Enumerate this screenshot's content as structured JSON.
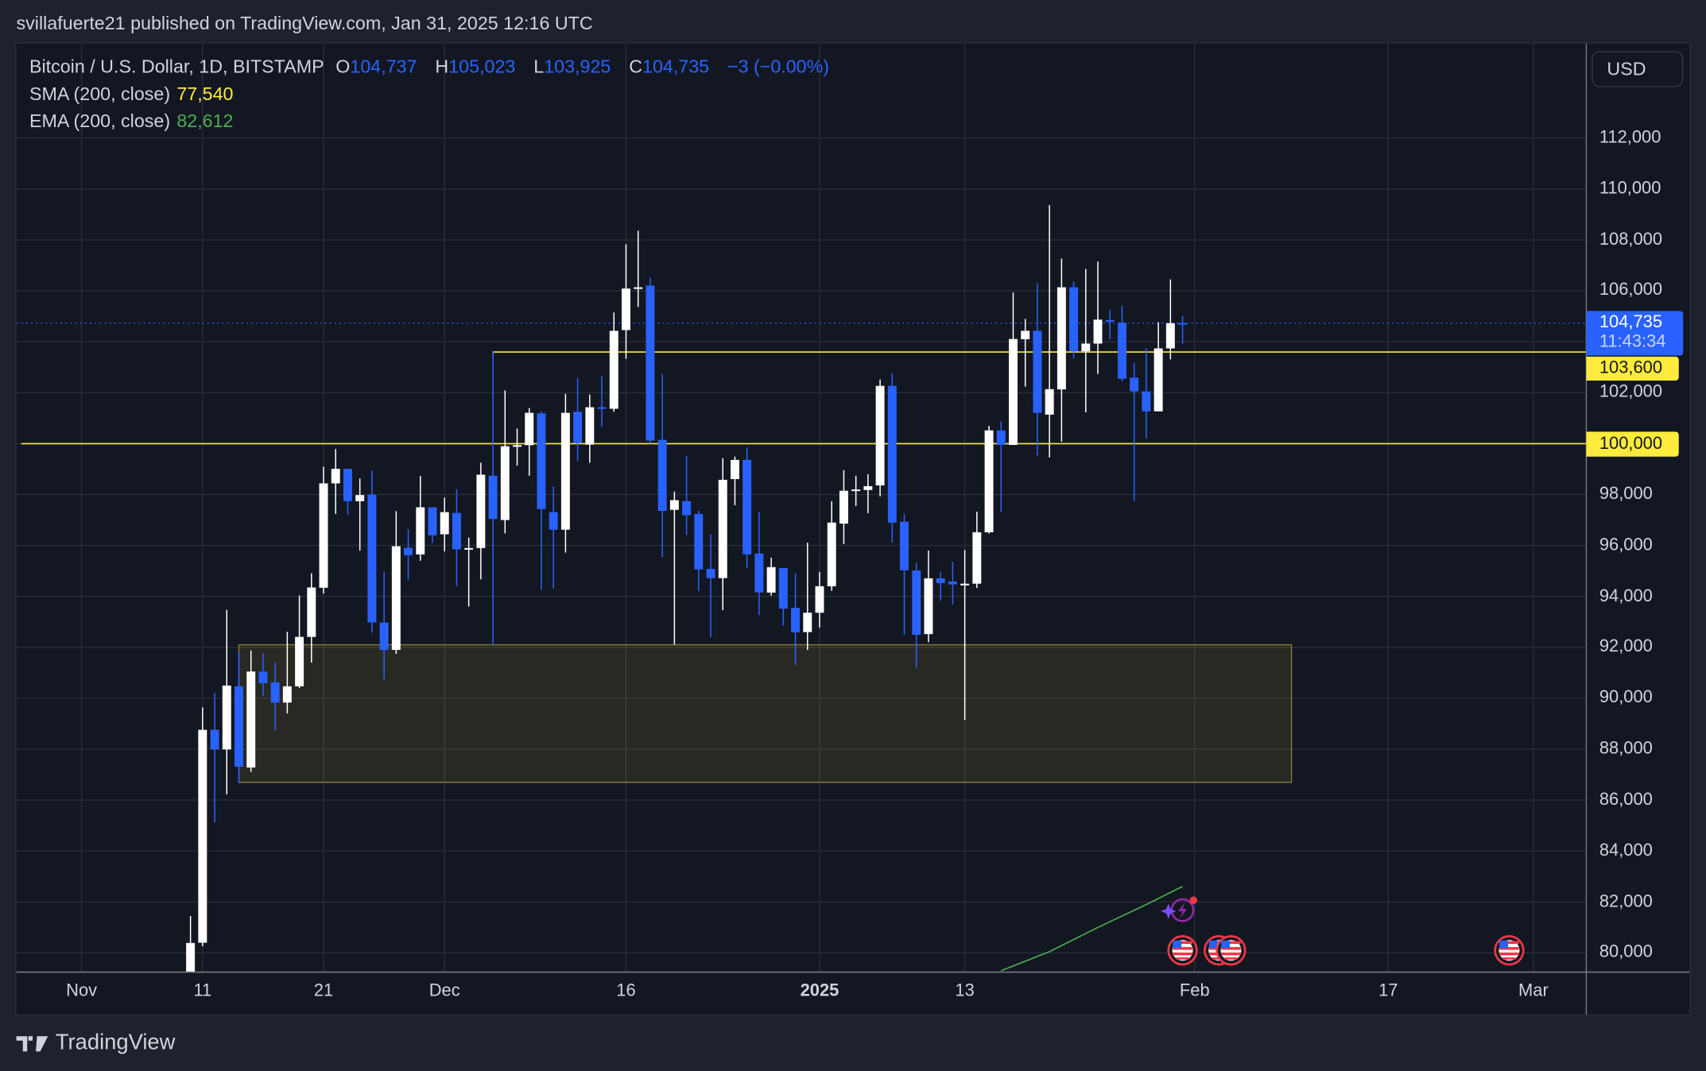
{
  "header": {
    "published": "svillafuerte21 published on TradingView.com, Jan 31, 2025 12:16 UTC"
  },
  "legend": {
    "symbol": "Bitcoin / U.S. Dollar, 1D, BITSTAMP",
    "o_label": "O",
    "o": "104,737",
    "h_label": "H",
    "h": "105,023",
    "l_label": "L",
    "l": "103,925",
    "c_label": "C",
    "c": "104,735",
    "change": "−3 (−0.00%)",
    "sma_label": "SMA (200, close)",
    "sma": "77,540",
    "ema_label": "EMA (200, close)",
    "ema": "82,612"
  },
  "price_axis": {
    "currency": "USD",
    "ticks": [
      "112,000",
      "110,000",
      "108,000",
      "106,000",
      "102,000",
      "98,000",
      "96,000",
      "94,000",
      "92,000",
      "90,000",
      "88,000",
      "86,000",
      "84,000",
      "82,000",
      "80,000"
    ],
    "last_price": "104,735",
    "countdown": "11:43:34",
    "level_high": "103,600",
    "level_low": "100,000"
  },
  "time_axis": {
    "ticks": [
      {
        "label": "Nov",
        "date": "2024-11-01"
      },
      {
        "label": "11",
        "date": "2024-11-11"
      },
      {
        "label": "21",
        "date": "2024-11-21"
      },
      {
        "label": "Dec",
        "date": "2024-12-01"
      },
      {
        "label": "16",
        "date": "2024-12-16"
      },
      {
        "label": "2025",
        "date": "2025-01-01",
        "bold": true
      },
      {
        "label": "13",
        "date": "2025-01-13"
      },
      {
        "label": "Feb",
        "date": "2025-02-01"
      },
      {
        "label": "17",
        "date": "2025-02-17"
      },
      {
        "label": "Mar",
        "date": "2025-03-01"
      }
    ]
  },
  "footer": {
    "brand": "TradingView"
  },
  "colors": {
    "up": "#ffffff",
    "down": "#2962ff",
    "level": "#ffeb3b",
    "ema": "#4caf50",
    "zone_border": "#8a7f33",
    "background": "#131722"
  },
  "chart_data": {
    "type": "candlestick",
    "title": "Bitcoin / U.S. Dollar, 1D, BITSTAMP",
    "ylim": [
      79200,
      113500
    ],
    "xlim": [
      "2024-10-27",
      "2025-03-07"
    ],
    "grid": true,
    "columns": [
      "date",
      "open",
      "high",
      "low",
      "close"
    ],
    "candles": [
      [
        "2024-11-10",
        76600,
        81450,
        76500,
        80390
      ],
      [
        "2024-11-11",
        80400,
        89640,
        80260,
        88760
      ],
      [
        "2024-11-12",
        88760,
        90220,
        85120,
        87990
      ],
      [
        "2024-11-13",
        87990,
        93470,
        86230,
        90500
      ],
      [
        "2024-11-14",
        90470,
        91800,
        86670,
        87310
      ],
      [
        "2024-11-15",
        87280,
        91880,
        87110,
        91050
      ],
      [
        "2024-11-16",
        91050,
        91760,
        90080,
        90590
      ],
      [
        "2024-11-17",
        90630,
        91410,
        88720,
        89830
      ],
      [
        "2024-11-18",
        89830,
        92610,
        89400,
        90470
      ],
      [
        "2024-11-19",
        90470,
        94040,
        90400,
        92410
      ],
      [
        "2024-11-20",
        92410,
        94910,
        91400,
        94350
      ],
      [
        "2024-11-21",
        94340,
        99090,
        94110,
        98440
      ],
      [
        "2024-11-22",
        98440,
        99790,
        97240,
        99010
      ],
      [
        "2024-11-23",
        99010,
        99010,
        97210,
        97740
      ],
      [
        "2024-11-24",
        97740,
        98630,
        95800,
        97980
      ],
      [
        "2024-11-25",
        98000,
        98940,
        92580,
        92980
      ],
      [
        "2024-11-26",
        92970,
        94980,
        90740,
        91900
      ],
      [
        "2024-11-27",
        91900,
        97350,
        91740,
        95970
      ],
      [
        "2024-11-28",
        95910,
        96640,
        94660,
        95620
      ],
      [
        "2024-11-29",
        95650,
        98730,
        95400,
        97500
      ],
      [
        "2024-11-30",
        97500,
        97500,
        96100,
        96400
      ],
      [
        "2024-12-01",
        96440,
        97880,
        95770,
        97310
      ],
      [
        "2024-12-02",
        97280,
        98210,
        94410,
        95850
      ],
      [
        "2024-12-03",
        95850,
        96310,
        93600,
        95900
      ],
      [
        "2024-12-04",
        95900,
        99250,
        94670,
        98780
      ],
      [
        "2024-12-05",
        98740,
        103640,
        92100,
        97040
      ],
      [
        "2024-12-06",
        97000,
        102090,
        96470,
        99900
      ],
      [
        "2024-12-07",
        99900,
        100590,
        99140,
        99940
      ],
      [
        "2024-12-08",
        99940,
        101400,
        98740,
        101210
      ],
      [
        "2024-12-09",
        101190,
        101270,
        94250,
        97430
      ],
      [
        "2024-12-10",
        97310,
        98310,
        94310,
        96620
      ],
      [
        "2024-12-11",
        96620,
        101960,
        95720,
        101210
      ],
      [
        "2024-12-12",
        101250,
        102580,
        99310,
        100020
      ],
      [
        "2024-12-13",
        99960,
        101930,
        99250,
        101430
      ],
      [
        "2024-12-14",
        101430,
        102650,
        100650,
        101400
      ],
      [
        "2024-12-15",
        101370,
        105150,
        101250,
        104430
      ],
      [
        "2024-12-16",
        104460,
        107830,
        103330,
        106090
      ],
      [
        "2024-12-17",
        106090,
        108360,
        105370,
        106140
      ],
      [
        "2024-12-18",
        106210,
        106520,
        100000,
        100120
      ],
      [
        "2024-12-19",
        100150,
        102740,
        95530,
        97360
      ],
      [
        "2024-12-20",
        97400,
        98120,
        92110,
        97780
      ],
      [
        "2024-12-21",
        97740,
        99530,
        96410,
        97190
      ],
      [
        "2024-12-22",
        97240,
        97360,
        94210,
        95060
      ],
      [
        "2024-12-23",
        95080,
        96430,
        92400,
        94720
      ],
      [
        "2024-12-24",
        94720,
        99430,
        93460,
        98580
      ],
      [
        "2024-12-25",
        98610,
        99490,
        97580,
        99360
      ],
      [
        "2024-12-26",
        99360,
        99860,
        95110,
        95650
      ],
      [
        "2024-12-27",
        95680,
        97330,
        93270,
        94160
      ],
      [
        "2024-12-28",
        94150,
        95520,
        94030,
        95150
      ],
      [
        "2024-12-29",
        95110,
        95110,
        92860,
        93520
      ],
      [
        "2024-12-30",
        93550,
        94900,
        91310,
        92590
      ],
      [
        "2024-12-31",
        92600,
        96110,
        91900,
        93360
      ],
      [
        "2025-01-01",
        93360,
        94960,
        92780,
        94400
      ],
      [
        "2025-01-02",
        94400,
        97740,
        94220,
        96900
      ],
      [
        "2025-01-03",
        96860,
        98960,
        96060,
        98150
      ],
      [
        "2025-01-04",
        98150,
        98740,
        97550,
        98200
      ],
      [
        "2025-01-05",
        98180,
        98800,
        97270,
        98330
      ],
      [
        "2025-01-06",
        98360,
        102520,
        97930,
        102270
      ],
      [
        "2025-01-07",
        102270,
        102770,
        96110,
        96900
      ],
      [
        "2025-01-08",
        96930,
        97240,
        92490,
        95030
      ],
      [
        "2025-01-09",
        95020,
        95330,
        91210,
        92490
      ],
      [
        "2025-01-10",
        92520,
        95800,
        92200,
        94710
      ],
      [
        "2025-01-11",
        94710,
        94960,
        93830,
        94520
      ],
      [
        "2025-01-12",
        94580,
        95360,
        93680,
        94470
      ],
      [
        "2025-01-13",
        94470,
        95820,
        89150,
        94500
      ],
      [
        "2025-01-14",
        94500,
        97330,
        94330,
        96520
      ],
      [
        "2025-01-15",
        96520,
        100700,
        96470,
        100520
      ],
      [
        "2025-01-16",
        100520,
        100870,
        97320,
        99950
      ],
      [
        "2025-01-17",
        99950,
        105930,
        99950,
        104110
      ],
      [
        "2025-01-18",
        104100,
        104900,
        102240,
        104430
      ],
      [
        "2025-01-19",
        104430,
        106300,
        99530,
        101210
      ],
      [
        "2025-01-20",
        101140,
        109370,
        99460,
        102140
      ],
      [
        "2025-01-21",
        102130,
        107270,
        100080,
        106140
      ],
      [
        "2025-01-22",
        106140,
        106370,
        103340,
        103630
      ],
      [
        "2025-01-23",
        103630,
        106860,
        101230,
        103930
      ],
      [
        "2025-01-24",
        103930,
        107150,
        102740,
        104870
      ],
      [
        "2025-01-25",
        104850,
        105250,
        104110,
        104800
      ],
      [
        "2025-01-26",
        104750,
        105420,
        102450,
        102550
      ],
      [
        "2025-01-27",
        102590,
        103170,
        97740,
        102050
      ],
      [
        "2025-01-28",
        102050,
        103740,
        100200,
        101270
      ],
      [
        "2025-01-29",
        101270,
        104770,
        101270,
        103740
      ],
      [
        "2025-01-30",
        103740,
        106450,
        103310,
        104730
      ],
      [
        "2025-01-31",
        104737,
        105023,
        103925,
        104735
      ]
    ],
    "ema_series": [
      [
        "2025-01-16",
        79300
      ],
      [
        "2025-01-20",
        80050
      ],
      [
        "2025-01-24",
        81000
      ],
      [
        "2025-01-28",
        81900
      ],
      [
        "2025-01-31",
        82612
      ]
    ],
    "horizontal_levels": [
      {
        "price": 103600,
        "from": "2024-12-05"
      },
      {
        "price": 100000,
        "from": "2024-10-27"
      }
    ],
    "last_price_line": 104735,
    "zone": {
      "from": "2024-11-14",
      "to": "2025-02-09",
      "top": 92100,
      "bottom": 86700
    },
    "events": [
      {
        "type": "earnings-lightning-icon",
        "date": "2025-01-31"
      },
      {
        "type": "us-flag-icon",
        "date": "2025-01-31"
      },
      {
        "type": "us-flag-icon",
        "date": "2025-02-03"
      },
      {
        "type": "us-flag-icon",
        "date": "2025-02-04"
      },
      {
        "type": "us-flag-icon",
        "date": "2025-02-27"
      }
    ]
  }
}
